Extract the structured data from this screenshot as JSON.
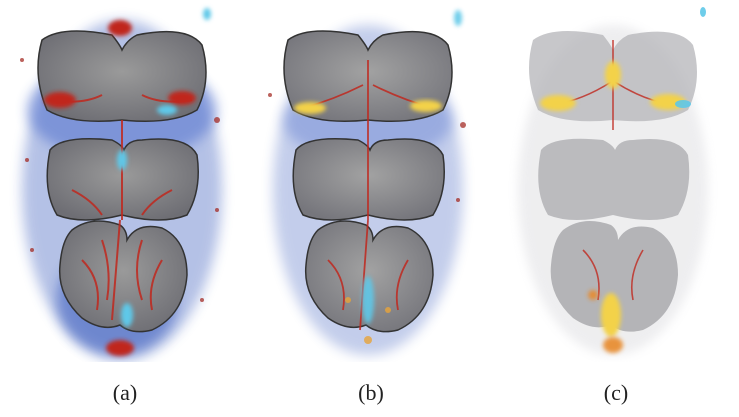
{
  "panels": [
    {
      "label": "(a)",
      "style": "blue-red-dense"
    },
    {
      "label": "(b)",
      "style": "blue-red-yellow-blend"
    },
    {
      "label": "(c)",
      "style": "yellow-red-sparse"
    }
  ],
  "colors": {
    "tissue_gray": "#8a8a8a",
    "vessel_red": "#c0281e",
    "vessel_blue": "#2a4fb8",
    "vessel_cyan": "#5fc8e8",
    "highlight_yellow": "#f3d24a"
  }
}
